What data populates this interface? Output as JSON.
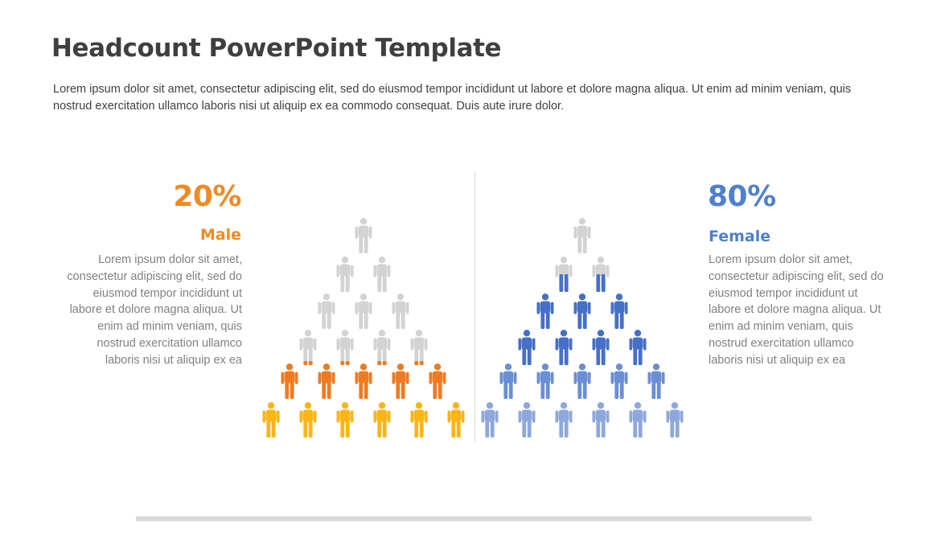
{
  "title": "Headcount PowerPoint Template",
  "description": "Lorem ipsum dolor sit amet, consectetur adipiscing elit, sed do eiusmod tempor incididunt ut labore et dolore magna aliqua. Ut enim ad minim veniam, quis nostrud exercitation ullamco laboris nisi ut aliquip ex ea commodo consequat. Duis aute irure dolor.",
  "colors": {
    "male_accent": "#f08a24",
    "female_accent": "#4f7fcf",
    "inactive": "#d3d3d3",
    "male_row_dark": "#ee7b22",
    "male_row_bright": "#fbb516",
    "female_row_dark": "#4670c8",
    "female_row_mid": "#6b8fd4",
    "female_row_light": "#8ea8dc"
  },
  "male": {
    "percent": "20%",
    "label": "Male",
    "text": "Lorem ipsum dolor sit amet, consectetur adipiscing elit, sed do eiusmod tempor incididunt ut labore et dolore magna aliqua. Ut enim ad minim veniam, quis nostrud exercitation ullamco laboris nisi ut aliquip ex ea",
    "icon": "person-icon",
    "rows": [
      {
        "count": 1,
        "style": "inactive"
      },
      {
        "count": 2,
        "style": "inactive"
      },
      {
        "count": 3,
        "style": "inactive"
      },
      {
        "count": 4,
        "style": "inactive-feet"
      },
      {
        "count": 5,
        "style": "male_row_dark"
      },
      {
        "count": 6,
        "style": "male_row_bright"
      }
    ]
  },
  "female": {
    "percent": "80%",
    "label": "Female",
    "text": "Lorem ipsum dolor sit amet, consectetur adipiscing elit, sed do eiusmod tempor incididunt ut labore et dolore magna aliqua. Ut enim ad minim veniam, quis nostrud exercitation ullamco laboris nisi ut aliquip ex ea",
    "icon": "person-icon",
    "rows": [
      {
        "count": 1,
        "style": "inactive"
      },
      {
        "count": 2,
        "style": "inactive-legs"
      },
      {
        "count": 3,
        "style": "female_row_dark"
      },
      {
        "count": 4,
        "style": "female_row_dark"
      },
      {
        "count": 5,
        "style": "female_row_mid"
      },
      {
        "count": 6,
        "style": "female_row_light"
      }
    ]
  }
}
